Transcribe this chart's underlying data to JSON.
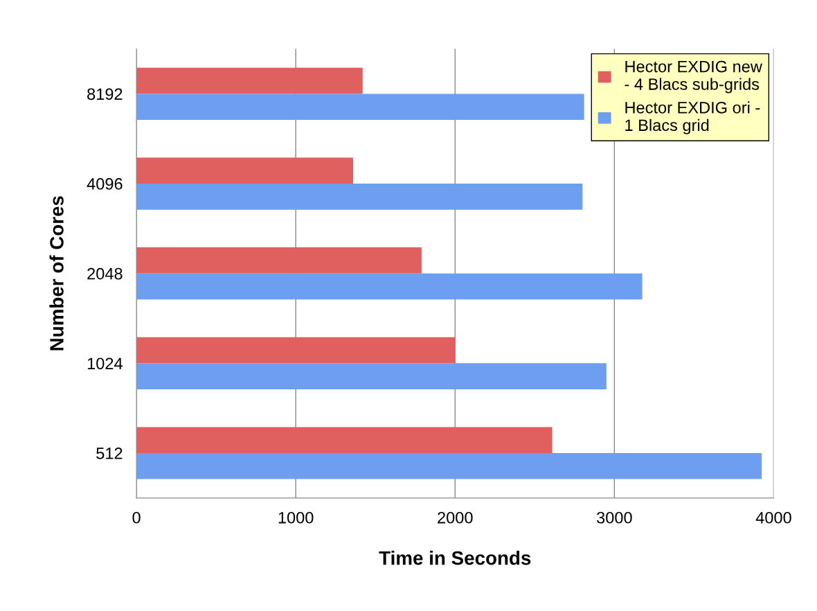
{
  "chart_data": {
    "type": "bar",
    "orientation": "horizontal",
    "xlabel": "Time in Seconds",
    "ylabel": "Number of Cores",
    "categories": [
      "8192",
      "4096",
      "2048",
      "1024",
      "512"
    ],
    "series": [
      {
        "name": "Hector EXDIG new\n- 4 Blacs sub-grids",
        "color": "#e06060",
        "values": [
          1420,
          1360,
          1790,
          2000,
          2610
        ]
      },
      {
        "name": "Hector EXDIG ori -\n1 Blacs grid",
        "color": "#6e9ef0",
        "values": [
          2810,
          2800,
          3175,
          2950,
          3925
        ]
      }
    ],
    "xlim": [
      0,
      4000
    ],
    "xticks": [
      0,
      1000,
      2000,
      3000,
      4000
    ],
    "grid": "x",
    "legend": "top right"
  }
}
